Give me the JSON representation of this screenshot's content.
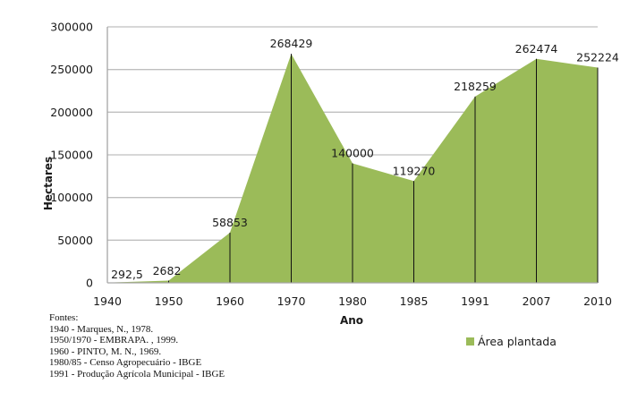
{
  "chart_data": {
    "type": "area",
    "title": "",
    "xlabel": "Ano",
    "ylabel": "Hectares",
    "categories": [
      "1940",
      "1950",
      "1960",
      "1970",
      "1980",
      "1985",
      "1991",
      "2007",
      "2010"
    ],
    "series": [
      {
        "name": "Área plantada",
        "color": "#9bbb59",
        "values": [
          292.5,
          2682,
          58853,
          268429,
          140000,
          119270,
          218259,
          262474,
          252224
        ],
        "data_labels": [
          "292,5",
          "2682",
          "58853",
          "268429",
          "140000",
          "119270",
          "218259",
          "262474",
          "252224"
        ]
      }
    ],
    "ylim": [
      0,
      300000
    ],
    "yticks": [
      "0",
      "50000",
      "100000",
      "150000",
      "200000",
      "250000",
      "300000"
    ],
    "grid": true,
    "legend_position": "bottom-right"
  },
  "legend": {
    "label": "Área plantada"
  },
  "sources": {
    "heading": "Fontes:",
    "lines": [
      "1940 - Marques, N., 1978.",
      "1950/1970 - EMBRAPA. ,  1999.",
      "1960 - PINTO, M. N., 1969.",
      "1980/85 - Censo Agropecuário - IBGE",
      "1991 - Produção Agrícola Municipal - IBGE"
    ]
  }
}
